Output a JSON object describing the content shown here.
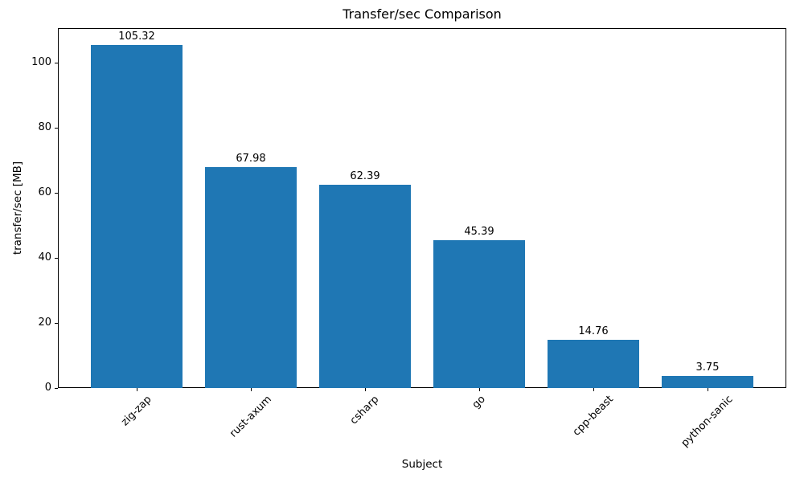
{
  "chart_data": {
    "type": "bar",
    "title": "Transfer/sec Comparison",
    "xlabel": "Subject",
    "ylabel": "transfer/sec [MB]",
    "categories": [
      "zig-zap",
      "rust-axum",
      "csharp",
      "go",
      "cpp-beast",
      "python-sanic"
    ],
    "values": [
      105.32,
      67.98,
      62.39,
      45.39,
      14.76,
      3.75
    ],
    "value_labels": [
      "105.32",
      "67.98",
      "62.39",
      "45.39",
      "14.76",
      "3.75"
    ],
    "yticks": [
      0,
      20,
      40,
      60,
      80,
      100
    ],
    "ylim": [
      0,
      110.59
    ],
    "bar_width_fraction": 0.8,
    "xtick_rotation_deg": 45,
    "bar_color": "#1f77b4",
    "spine_color": "#000000",
    "grid": false,
    "legend": null
  }
}
